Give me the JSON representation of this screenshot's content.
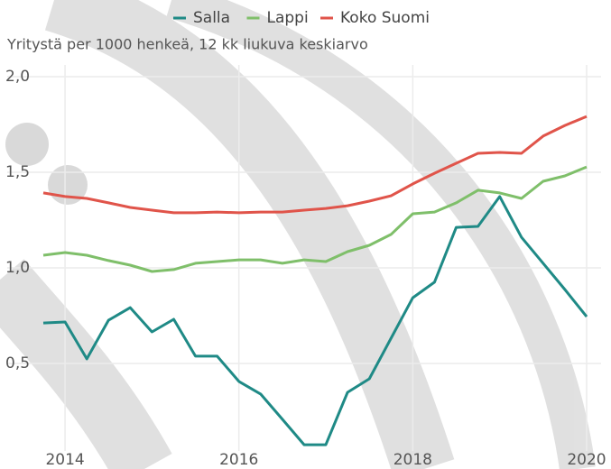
{
  "chart_data": {
    "type": "line",
    "subtitle": "Yritystä per 1000 henkeä, 12 kk liukuva keskiarvo",
    "x": [
      2013.75,
      2014.0,
      2014.25,
      2014.5,
      2014.75,
      2015.0,
      2015.25,
      2015.5,
      2015.75,
      2016.0,
      2016.25,
      2016.5,
      2016.75,
      2017.0,
      2017.25,
      2017.5,
      2017.75,
      2018.0,
      2018.25,
      2018.5,
      2018.75,
      2019.0,
      2019.25,
      2019.5,
      2019.75,
      2020.0
    ],
    "series": [
      {
        "name": "Salla",
        "color": "#1f8a86",
        "values": [
          0.712,
          0.717,
          0.524,
          0.726,
          0.792,
          0.665,
          0.731,
          0.538,
          0.538,
          0.406,
          0.34,
          0.208,
          0.075,
          0.075,
          0.349,
          0.42,
          0.632,
          0.844,
          0.925,
          1.212,
          1.217,
          1.373,
          1.16,
          1.024,
          0.887,
          0.745
        ]
      },
      {
        "name": "Lappi",
        "color": "#7fbf6a",
        "values": [
          1.066,
          1.08,
          1.066,
          1.038,
          1.014,
          0.981,
          0.991,
          1.024,
          1.033,
          1.042,
          1.042,
          1.024,
          1.042,
          1.033,
          1.085,
          1.118,
          1.175,
          1.283,
          1.292,
          1.34,
          1.406,
          1.392,
          1.363,
          1.453,
          1.481,
          1.528
        ]
      },
      {
        "name": "Koko Suomi",
        "color": "#e0544a",
        "values": [
          1.392,
          1.373,
          1.363,
          1.34,
          1.316,
          1.302,
          1.288,
          1.288,
          1.292,
          1.288,
          1.292,
          1.292,
          1.302,
          1.311,
          1.325,
          1.349,
          1.377,
          1.439,
          1.495,
          1.547,
          1.599,
          1.604,
          1.599,
          1.689,
          1.745,
          1.792
        ]
      }
    ],
    "xlim": [
      2013.75,
      2020.0
    ],
    "xticks": [
      2014,
      2016,
      2018,
      2020
    ],
    "ylim": [
      0.05,
      2.05
    ],
    "yticks": [
      {
        "value": 0.5,
        "label": "0,5"
      },
      {
        "value": 1.0,
        "label": "1,0"
      },
      {
        "value": 1.5,
        "label": "1,5"
      },
      {
        "value": 2.0,
        "label": "2,0"
      }
    ],
    "grid": true,
    "legend": "top"
  }
}
